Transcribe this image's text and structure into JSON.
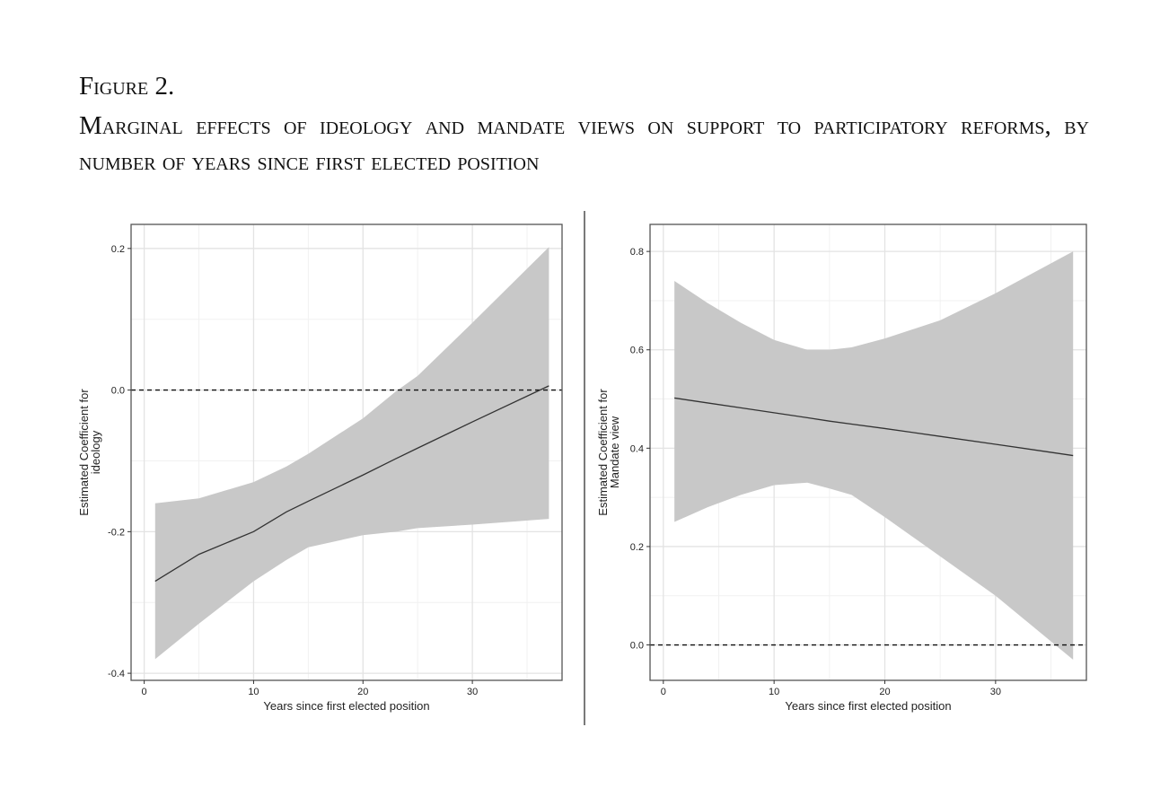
{
  "figure": {
    "label": "Figure 2.",
    "caption": "Marginal effects of ideology and mandate views on support to participatory reforms, by number of years since first elected position"
  },
  "colors": {
    "band": "#c8c8c8",
    "line": "#333333",
    "grid": "#e3e3e3",
    "frame": "#555555"
  },
  "chart_data": [
    {
      "type": "line",
      "title": "",
      "xlabel": "Years since first elected position",
      "ylabel": [
        "Estimated Coefficient for",
        "ideology"
      ],
      "xlim": [
        -1.2,
        38.2
      ],
      "ylim": [
        -0.41,
        0.234
      ],
      "xticks": [
        0,
        10,
        20,
        30
      ],
      "xtick_labels": [
        "0",
        "10",
        "20",
        "30"
      ],
      "yticks": [
        -0.4,
        -0.2,
        0.0,
        0.2
      ],
      "ytick_labels": [
        "-0.4",
        "-0.2",
        "0.0",
        "0.2"
      ],
      "reference_line": 0,
      "grid": true,
      "x": [
        1,
        5,
        10,
        13,
        15,
        20,
        23,
        25,
        30,
        37
      ],
      "estimate": [
        -0.27,
        -0.232,
        -0.2,
        -0.172,
        -0.157,
        -0.12,
        -0.097,
        -0.082,
        -0.045,
        0.006
      ],
      "ci_upper": [
        -0.16,
        -0.153,
        -0.13,
        -0.108,
        -0.09,
        -0.04,
        -0.002,
        0.02,
        0.095,
        0.202
      ],
      "ci_lower": [
        -0.38,
        -0.33,
        -0.27,
        -0.24,
        -0.222,
        -0.205,
        -0.2,
        -0.195,
        -0.19,
        -0.182
      ]
    },
    {
      "type": "line",
      "title": "",
      "xlabel": "Years since first elected position",
      "ylabel": [
        "Estimated Coefficient for",
        "Mandate view"
      ],
      "xlim": [
        -1.2,
        38.2
      ],
      "ylim": [
        -0.072,
        0.855
      ],
      "xticks": [
        0,
        10,
        20,
        30
      ],
      "xtick_labels": [
        "0",
        "10",
        "20",
        "30"
      ],
      "yticks": [
        0.0,
        0.2,
        0.4,
        0.6,
        0.8
      ],
      "ytick_labels": [
        "0.0",
        "0.2",
        "0.4",
        "0.6",
        "0.8"
      ],
      "reference_line": 0,
      "grid": true,
      "x": [
        1,
        4,
        7,
        10,
        13,
        15,
        17,
        20,
        25,
        30,
        37
      ],
      "estimate": [
        0.502,
        0.492,
        0.482,
        0.472,
        0.462,
        0.455,
        0.449,
        0.44,
        0.424,
        0.408,
        0.385
      ],
      "ci_upper": [
        0.74,
        0.695,
        0.655,
        0.62,
        0.6,
        0.6,
        0.605,
        0.623,
        0.66,
        0.715,
        0.8
      ],
      "ci_lower": [
        0.25,
        0.28,
        0.305,
        0.325,
        0.33,
        0.318,
        0.305,
        0.26,
        0.18,
        0.1,
        -0.03
      ]
    }
  ]
}
